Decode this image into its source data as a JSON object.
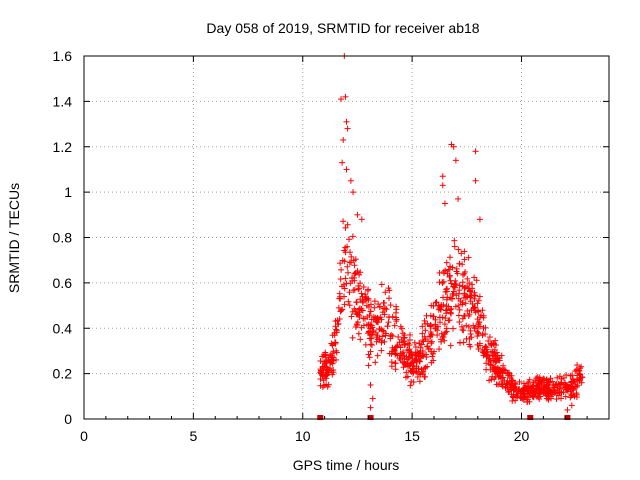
{
  "chart_data": {
    "type": "scatter",
    "title": "Day 058 of 2019, SRMTID for receiver ab18",
    "xlabel": "GPS time / hours",
    "ylabel": "SRMTID / TECUs",
    "xlim": [
      0,
      24
    ],
    "ylim": [
      0,
      1.6
    ],
    "xticks": [
      0,
      5,
      10,
      15,
      20
    ],
    "xtick_labels": [
      "0",
      "5",
      "10",
      "15",
      "20"
    ],
    "yticks": [
      0,
      0.2,
      0.4,
      0.6,
      0.8,
      1.0,
      1.2,
      1.4,
      1.6
    ],
    "ytick_labels": [
      "0",
      "0.2",
      "0.4",
      "0.6",
      "0.8",
      "1",
      "1.2",
      "1.4",
      "1.6"
    ],
    "grid": true,
    "marker": "+",
    "series_color": "#ff0000",
    "marker_color": "#cc0000",
    "baseline_markers_x": [
      10.8,
      13.1,
      20.4,
      22.1
    ],
    "profile": [
      [
        10.8,
        0.22
      ],
      [
        11.0,
        0.22
      ],
      [
        11.2,
        0.2
      ],
      [
        11.4,
        0.3
      ],
      [
        11.6,
        0.4
      ],
      [
        11.8,
        0.6
      ],
      [
        12.0,
        0.7
      ],
      [
        12.2,
        0.65
      ],
      [
        12.4,
        0.55
      ],
      [
        12.6,
        0.5
      ],
      [
        12.8,
        0.45
      ],
      [
        13.0,
        0.42
      ],
      [
        13.2,
        0.4
      ],
      [
        13.4,
        0.4
      ],
      [
        13.6,
        0.42
      ],
      [
        13.8,
        0.45
      ],
      [
        14.0,
        0.4
      ],
      [
        14.3,
        0.35
      ],
      [
        14.6,
        0.3
      ],
      [
        15.0,
        0.25
      ],
      [
        15.3,
        0.28
      ],
      [
        15.6,
        0.32
      ],
      [
        16.0,
        0.4
      ],
      [
        16.4,
        0.5
      ],
      [
        16.8,
        0.55
      ],
      [
        17.0,
        0.6
      ],
      [
        17.3,
        0.55
      ],
      [
        17.6,
        0.5
      ],
      [
        18.0,
        0.45
      ],
      [
        18.3,
        0.35
      ],
      [
        18.6,
        0.28
      ],
      [
        19.0,
        0.22
      ],
      [
        19.4,
        0.15
      ],
      [
        19.8,
        0.12
      ],
      [
        20.2,
        0.12
      ],
      [
        20.6,
        0.13
      ],
      [
        21.0,
        0.14
      ],
      [
        21.4,
        0.13
      ],
      [
        21.8,
        0.14
      ],
      [
        22.2,
        0.14
      ],
      [
        22.5,
        0.16
      ],
      [
        22.8,
        0.22
      ]
    ],
    "peaks": [
      [
        11.75,
        1.41
      ],
      [
        11.85,
        1.23
      ],
      [
        11.95,
        1.42
      ],
      [
        12.0,
        1.31
      ],
      [
        12.05,
        1.28
      ],
      [
        12.0,
        1.1
      ],
      [
        12.2,
        1.05
      ],
      [
        12.3,
        1.0
      ],
      [
        11.8,
        1.13
      ],
      [
        12.5,
        0.9
      ],
      [
        12.7,
        0.88
      ],
      [
        11.9,
        1.6
      ],
      [
        16.8,
        1.21
      ],
      [
        16.9,
        1.2
      ],
      [
        17.0,
        1.14
      ],
      [
        17.9,
        1.18
      ],
      [
        16.4,
        1.07
      ],
      [
        16.4,
        1.03
      ],
      [
        17.1,
        0.97
      ],
      [
        17.9,
        1.05
      ],
      [
        18.1,
        0.88
      ],
      [
        16.5,
        0.95
      ],
      [
        13.1,
        0.05
      ],
      [
        13.2,
        0.09
      ],
      [
        13.1,
        0.15
      ],
      [
        22.1,
        0.04
      ],
      [
        22.3,
        0.06
      ]
    ]
  }
}
